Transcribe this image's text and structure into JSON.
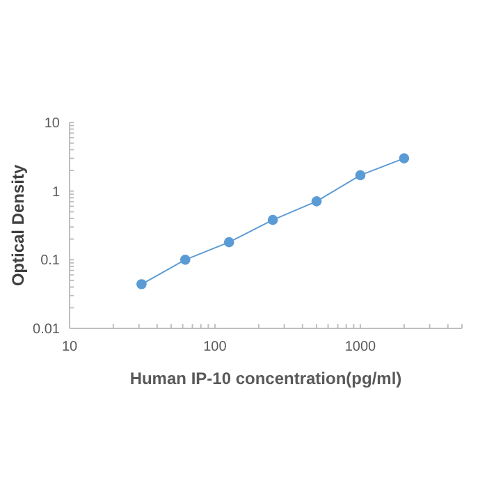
{
  "chart_data": {
    "type": "line",
    "xlabel": "Human IP-10 concentration(pg/ml)",
    "ylabel": "Optical Density",
    "log": "xy",
    "marker": "circle",
    "line_style": "solid",
    "grid": false,
    "x": [
      31.25,
      62.5,
      125,
      250,
      500,
      1000,
      2000
    ],
    "series": [
      {
        "color": "#5b9bd5",
        "values": [
          0.044,
          0.1,
          0.18,
          0.38,
          0.71,
          1.7,
          3.0
        ]
      }
    ],
    "xlim": [
      10,
      5000
    ],
    "xticks": [
      10,
      {
        "value": 20,
        "label": null
      },
      {
        "value": 30,
        "label": null
      },
      {
        "value": 40,
        "label": null
      },
      {
        "value": 50,
        "label": null
      },
      {
        "value": 60,
        "label": null
      },
      {
        "value": 70,
        "label": null
      },
      {
        "value": 80,
        "label": null
      },
      {
        "value": 90,
        "label": null
      },
      100,
      {
        "value": 200,
        "label": null
      },
      {
        "value": 300,
        "label": null
      },
      {
        "value": 400,
        "label": null
      },
      {
        "value": 500,
        "label": null
      },
      {
        "value": 600,
        "label": null
      },
      {
        "value": 700,
        "label": null
      },
      {
        "value": 800,
        "label": null
      },
      {
        "value": 900,
        "label": null
      },
      1000,
      {
        "value": 2000,
        "label": null
      },
      {
        "value": 3000,
        "label": null
      },
      {
        "value": 4000,
        "label": null
      },
      {
        "value": 5000,
        "label": null
      }
    ],
    "ylim": [
      0.01,
      10
    ],
    "yticks": [
      0.01,
      {
        "value": 0.02,
        "label": null
      },
      {
        "value": 0.03,
        "label": null
      },
      {
        "value": 0.04,
        "label": null
      },
      {
        "value": 0.05,
        "label": null
      },
      {
        "value": 0.06,
        "label": null
      },
      {
        "value": 0.07,
        "label": null
      },
      {
        "value": 0.08,
        "label": null
      },
      {
        "value": 0.09,
        "label": null
      },
      0.1,
      {
        "value": 0.2,
        "label": null
      },
      {
        "value": 0.3,
        "label": null
      },
      {
        "value": 0.4,
        "label": null
      },
      {
        "value": 0.5,
        "label": null
      },
      {
        "value": 0.6,
        "label": null
      },
      {
        "value": 0.7,
        "label": null
      },
      {
        "value": 0.8,
        "label": null
      },
      {
        "value": 0.9,
        "label": null
      },
      1,
      {
        "value": 2,
        "label": null
      },
      {
        "value": 3,
        "label": null
      },
      {
        "value": 4,
        "label": null
      },
      {
        "value": 5,
        "label": null
      },
      {
        "value": 6,
        "label": null
      },
      {
        "value": 7,
        "label": null
      },
      {
        "value": 8,
        "label": null
      },
      {
        "value": 9,
        "label": null
      },
      10
    ]
  }
}
